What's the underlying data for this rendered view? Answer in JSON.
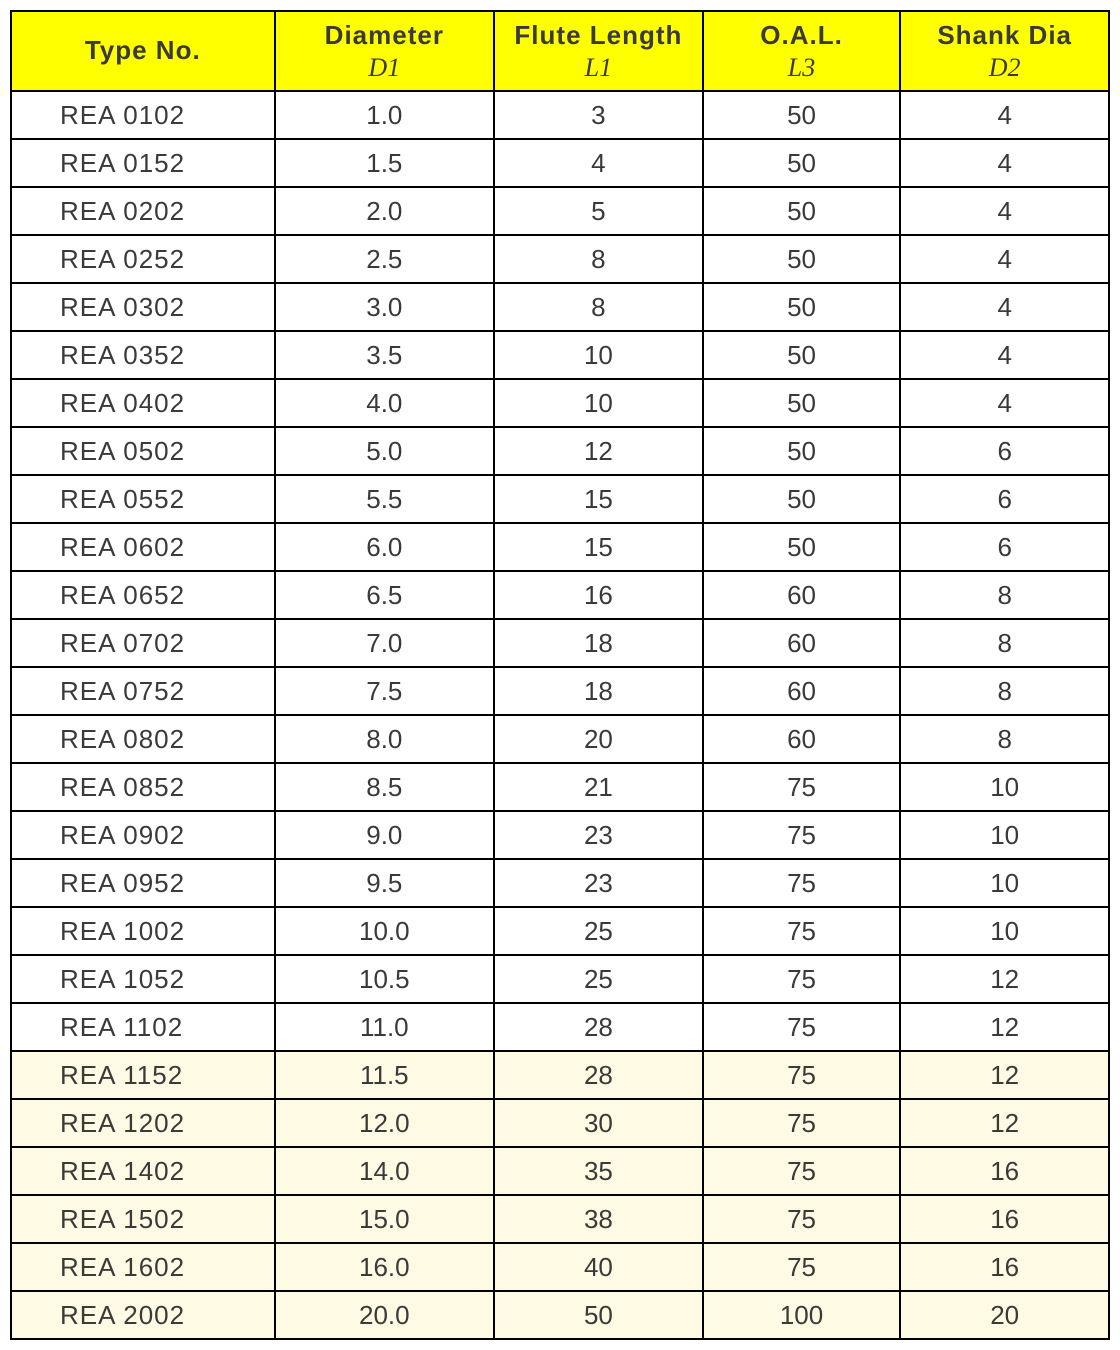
{
  "table": {
    "header_bg": "#ffff00",
    "border_color": "#000000",
    "text_color": "#3a3a3a",
    "tint_bg": "#fffae3",
    "columns": [
      {
        "main": "Type  No.",
        "sub": ""
      },
      {
        "main": "Diameter",
        "sub": "D1"
      },
      {
        "main": "Flute  Length",
        "sub": "L1"
      },
      {
        "main": "O.A.L.",
        "sub": "L3"
      },
      {
        "main": "Shank Dia",
        "sub": "D2"
      }
    ],
    "rows": [
      {
        "tint": false,
        "cells": [
          "REA 0102",
          "1.0",
          "3",
          "50",
          "4"
        ]
      },
      {
        "tint": false,
        "cells": [
          "REA 0152",
          "1.5",
          "4",
          "50",
          "4"
        ]
      },
      {
        "tint": false,
        "cells": [
          "REA 0202",
          "2.0",
          "5",
          "50",
          "4"
        ]
      },
      {
        "tint": false,
        "cells": [
          "REA 0252",
          "2.5",
          "8",
          "50",
          "4"
        ]
      },
      {
        "tint": false,
        "cells": [
          "REA 0302",
          "3.0",
          "8",
          "50",
          "4"
        ]
      },
      {
        "tint": false,
        "cells": [
          "REA 0352",
          "3.5",
          "10",
          "50",
          "4"
        ]
      },
      {
        "tint": false,
        "cells": [
          "REA 0402",
          "4.0",
          "10",
          "50",
          "4"
        ]
      },
      {
        "tint": false,
        "cells": [
          "REA 0502",
          "5.0",
          "12",
          "50",
          "6"
        ]
      },
      {
        "tint": false,
        "cells": [
          "REA 0552",
          "5.5",
          "15",
          "50",
          "6"
        ]
      },
      {
        "tint": false,
        "cells": [
          "REA 0602",
          "6.0",
          "15",
          "50",
          "6"
        ]
      },
      {
        "tint": false,
        "cells": [
          "REA 0652",
          "6.5",
          "16",
          "60",
          "8"
        ]
      },
      {
        "tint": false,
        "cells": [
          "REA 0702",
          "7.0",
          "18",
          "60",
          "8"
        ]
      },
      {
        "tint": false,
        "cells": [
          "REA 0752",
          "7.5",
          "18",
          "60",
          "8"
        ]
      },
      {
        "tint": false,
        "cells": [
          "REA 0802",
          "8.0",
          "20",
          "60",
          "8"
        ]
      },
      {
        "tint": false,
        "cells": [
          "REA 0852",
          "8.5",
          "21",
          "75",
          "10"
        ]
      },
      {
        "tint": false,
        "cells": [
          "REA 0902",
          "9.0",
          "23",
          "75",
          "10"
        ]
      },
      {
        "tint": false,
        "cells": [
          "REA 0952",
          "9.5",
          "23",
          "75",
          "10"
        ]
      },
      {
        "tint": false,
        "cells": [
          "REA 1002",
          "10.0",
          "25",
          "75",
          "10"
        ]
      },
      {
        "tint": false,
        "cells": [
          "REA 1052",
          "10.5",
          "25",
          "75",
          "12"
        ]
      },
      {
        "tint": false,
        "cells": [
          "REA 1102",
          "11.0",
          "28",
          "75",
          "12"
        ]
      },
      {
        "tint": true,
        "cells": [
          "REA 1152",
          "11.5",
          "28",
          "75",
          "12"
        ]
      },
      {
        "tint": true,
        "cells": [
          "REA 1202",
          "12.0",
          "30",
          "75",
          "12"
        ]
      },
      {
        "tint": true,
        "cells": [
          "REA 1402",
          "14.0",
          "35",
          "75",
          "16"
        ]
      },
      {
        "tint": true,
        "cells": [
          "REA 1502",
          "15.0",
          "38",
          "75",
          "16"
        ]
      },
      {
        "tint": true,
        "cells": [
          "REA 1602",
          "16.0",
          "40",
          "75",
          "16"
        ]
      },
      {
        "tint": true,
        "cells": [
          "REA 2002",
          "20.0",
          "50",
          "100",
          "20"
        ]
      }
    ]
  }
}
